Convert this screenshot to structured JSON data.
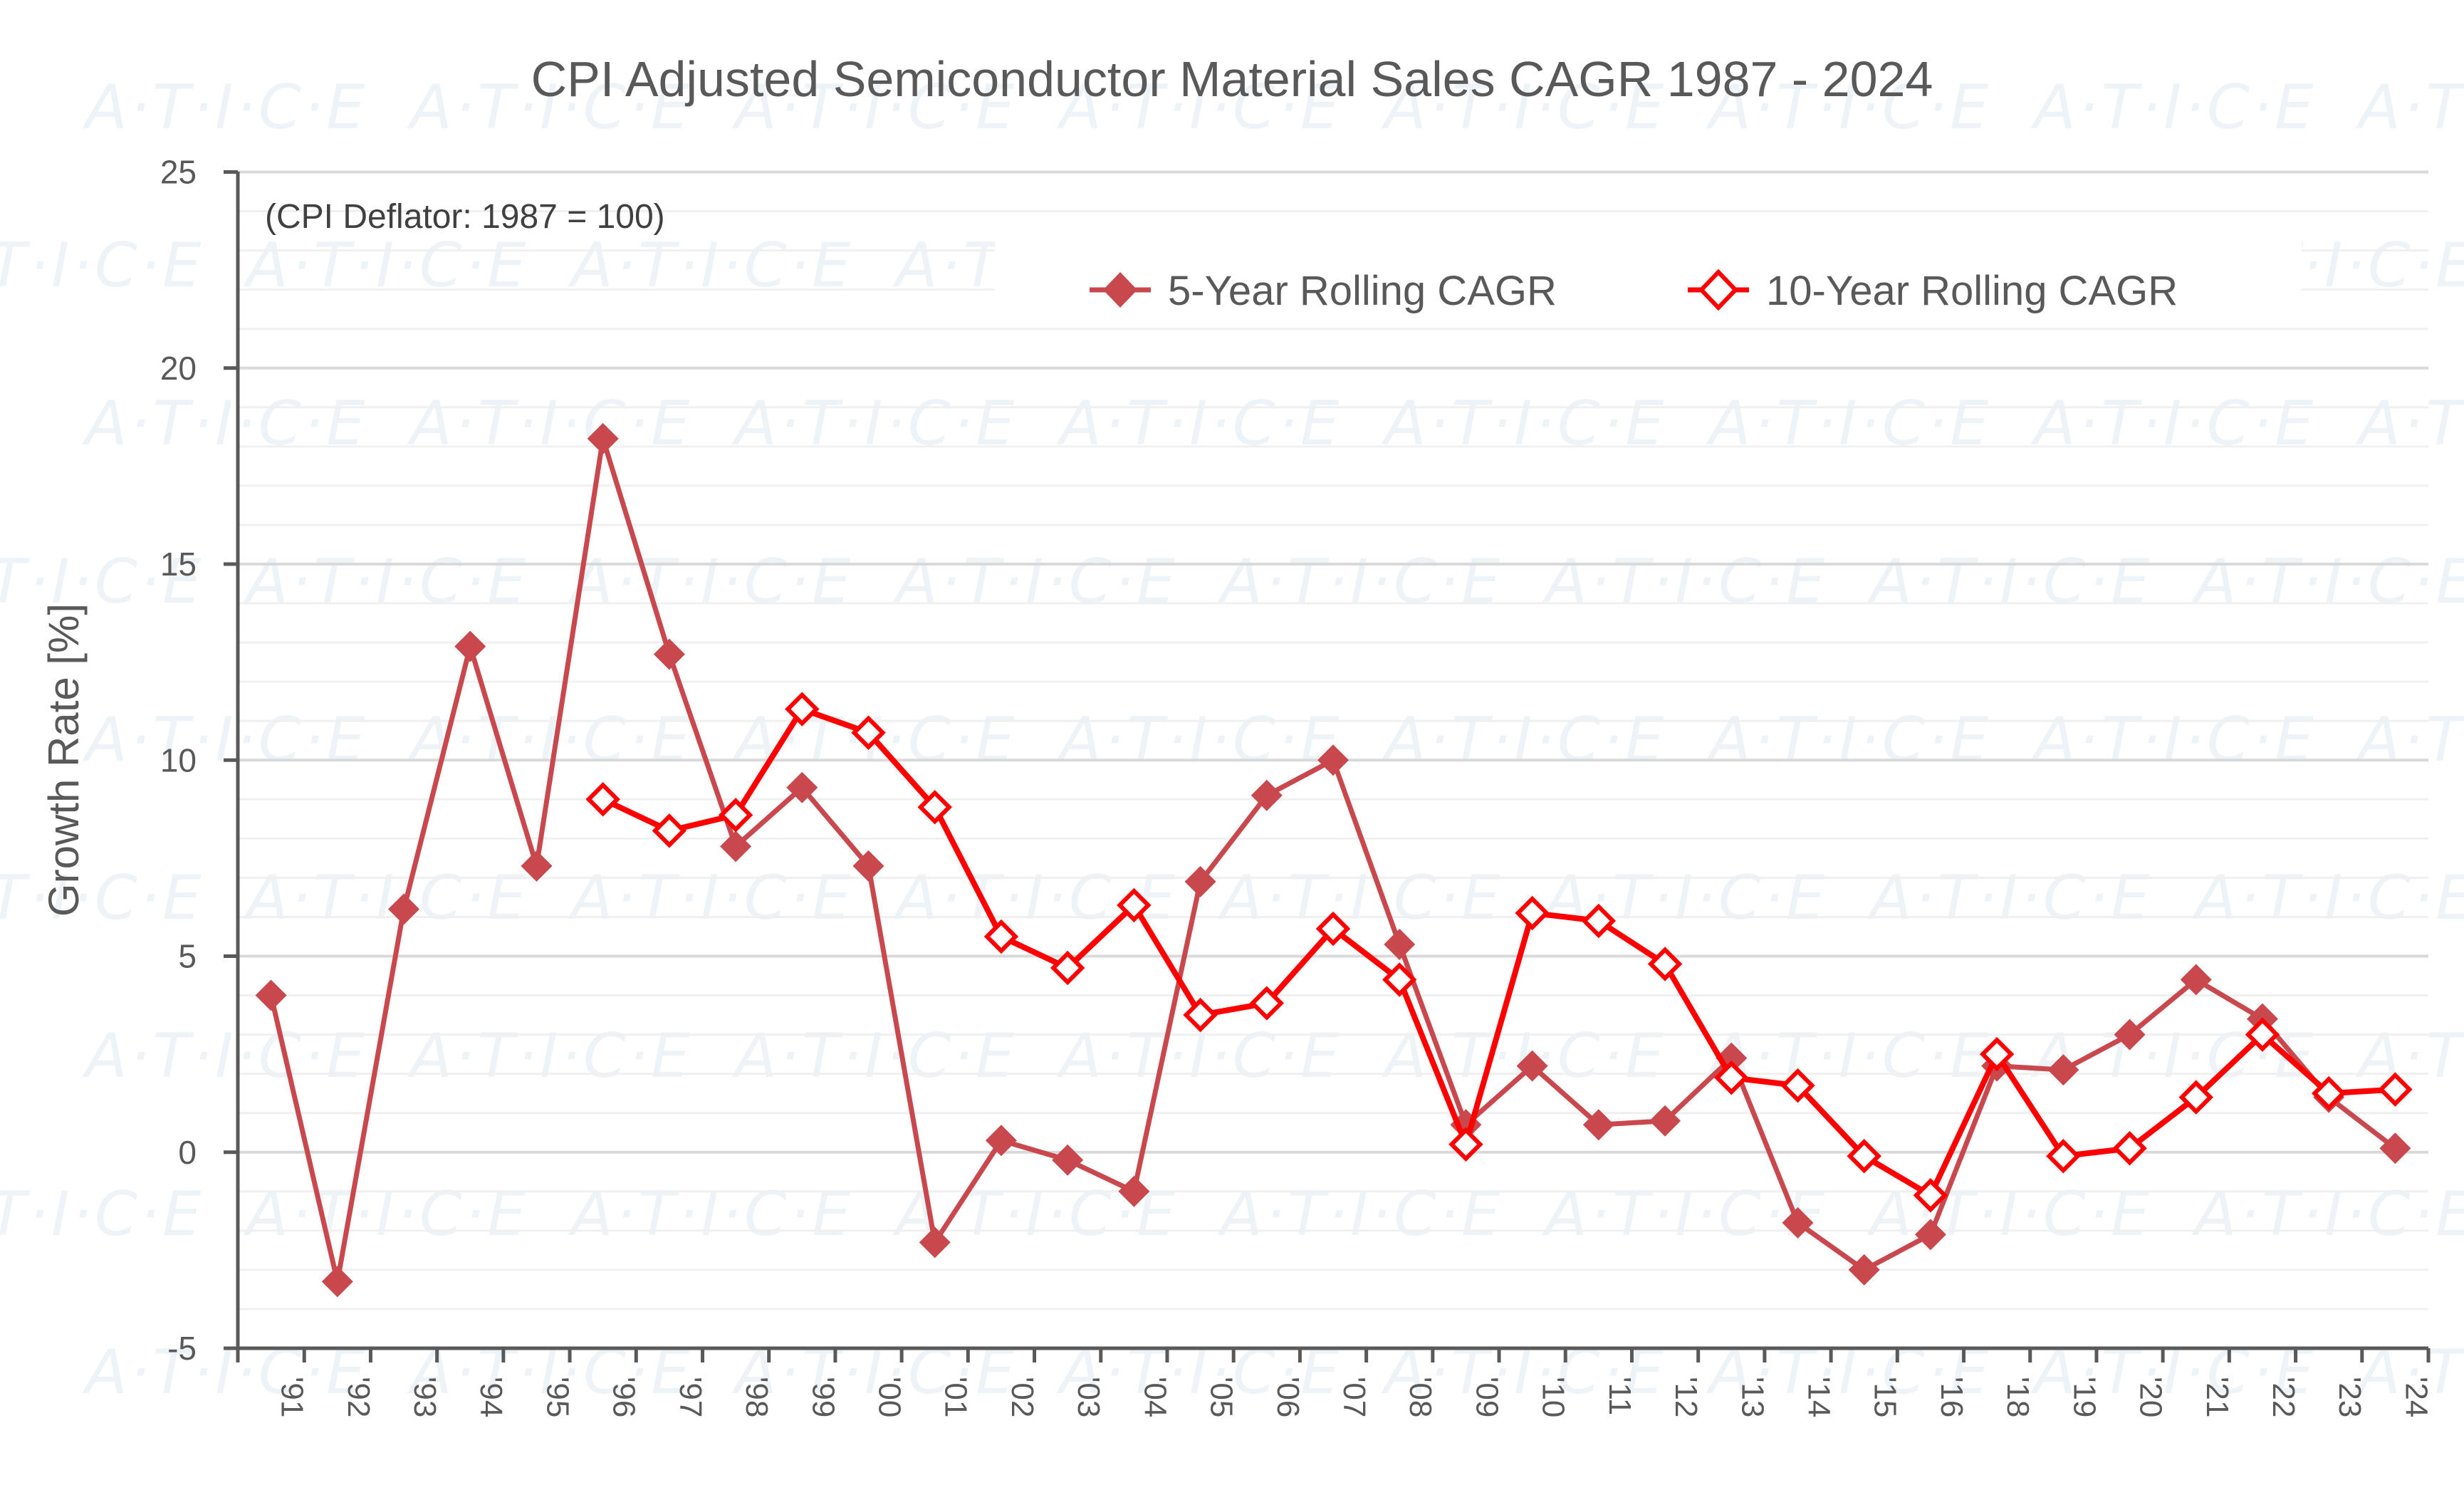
{
  "chart_data": {
    "type": "line",
    "title": "CPI Adjusted Semiconductor Material Sales CAGR 1987 - 2024",
    "annotation": "(CPI Deflator:  1987 = 100)",
    "xlabel": "",
    "ylabel": "Growth Rate [%]",
    "ylim": [
      -5,
      25
    ],
    "yticks": [
      -5,
      0,
      5,
      10,
      15,
      20,
      25
    ],
    "minor_grid_step": 1,
    "grid": true,
    "legend_position": "top-center",
    "watermark": "A·T·I·C·E",
    "categories": [
      "'91",
      "'92",
      "'93",
      "'94",
      "'95",
      "'96",
      "'97",
      "'98",
      "'99",
      "'00",
      "'01",
      "'02",
      "'03",
      "'04",
      "'05",
      "'06",
      "'07",
      "'08",
      "'09",
      "'10",
      "'11",
      "'12",
      "'13",
      "'14",
      "'15",
      "'16",
      "'18",
      "'19",
      "'20",
      "'21",
      "'22",
      "'23",
      "'24"
    ],
    "series": [
      {
        "name": "5-Year Rolling CAGR",
        "marker": "filled-diamond",
        "color": "#C9484D",
        "values": [
          4.0,
          -3.3,
          6.2,
          12.9,
          7.3,
          18.2,
          12.7,
          7.8,
          9.3,
          7.3,
          -2.3,
          0.3,
          -0.2,
          -1.0,
          6.9,
          9.1,
          10.0,
          5.3,
          0.7,
          2.2,
          0.7,
          0.8,
          2.4,
          -1.8,
          -3.0,
          -2.1,
          2.2,
          2.1,
          3.0,
          4.4,
          3.4,
          1.4,
          0.1
        ]
      },
      {
        "name": "10-Year Rolling CAGR",
        "marker": "hollow-diamond",
        "color": "#FF0000",
        "values": [
          null,
          null,
          null,
          null,
          null,
          9.0,
          8.2,
          8.6,
          11.3,
          10.7,
          8.8,
          5.5,
          4.7,
          6.3,
          3.5,
          3.8,
          5.7,
          4.4,
          0.2,
          6.1,
          5.9,
          4.8,
          1.9,
          1.7,
          -0.1,
          -1.1,
          2.5,
          -0.1,
          0.1,
          1.4,
          3.0,
          1.5,
          1.6
        ]
      }
    ]
  },
  "colors": {
    "axis": "#595959",
    "grid_major": "#D9D9D9",
    "grid_minor": "#F0F0F0",
    "text": "#595959"
  }
}
